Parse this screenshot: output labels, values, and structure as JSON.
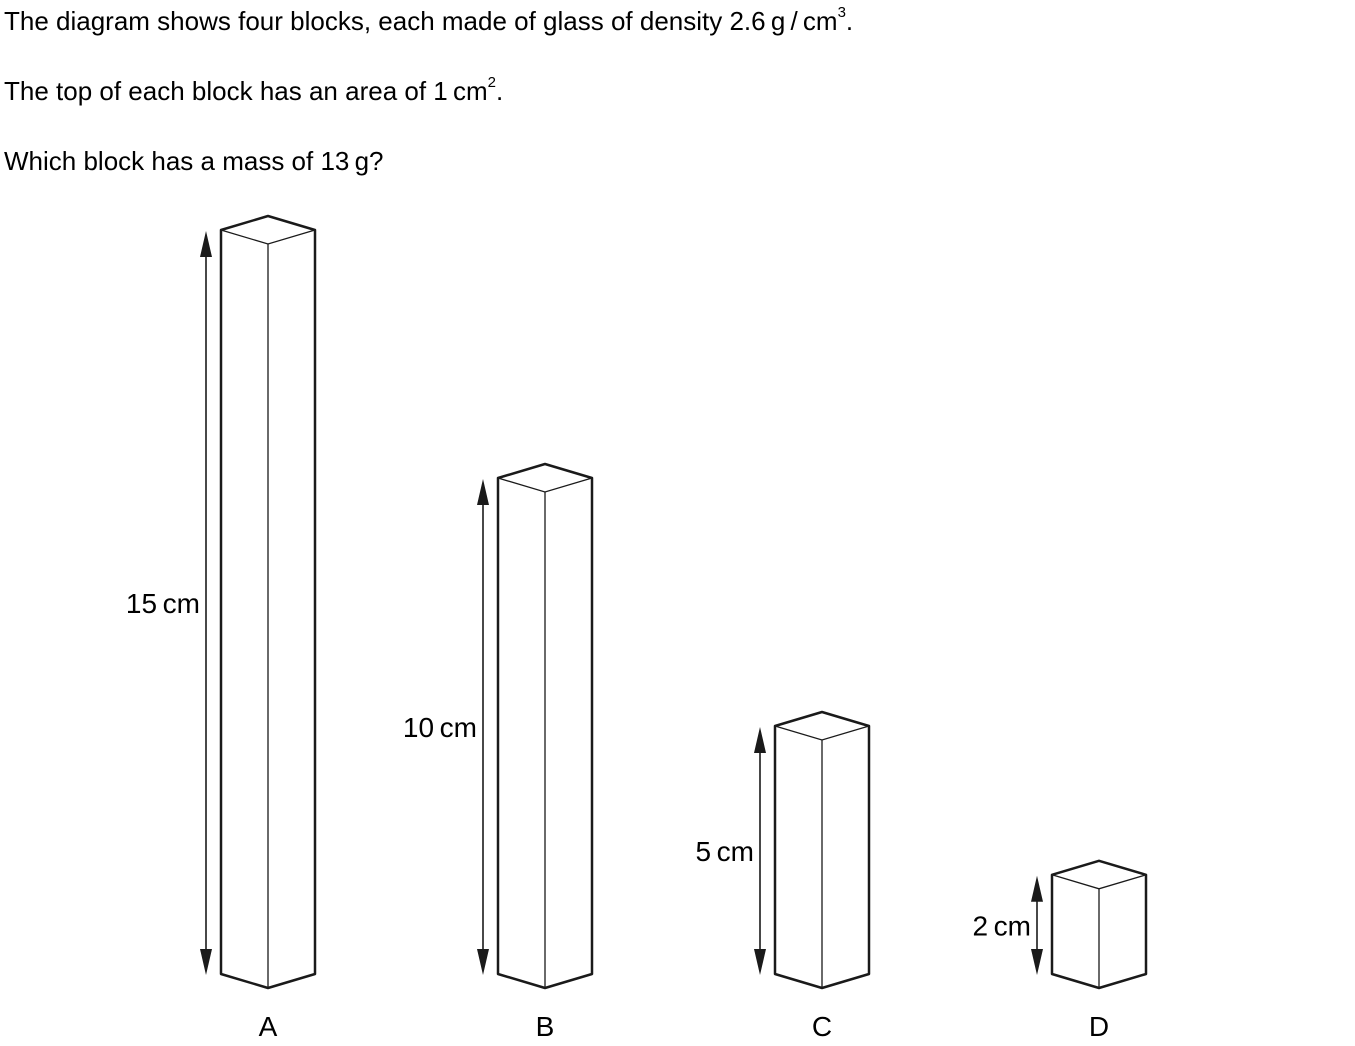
{
  "question": {
    "line1_prefix": "The diagram shows four blocks, each made of glass of density 2.6 g / cm",
    "line1_sup": "3",
    "line1_suffix": ".",
    "line2_prefix": "The top of each block has an area of 1 cm",
    "line2_sup": "2",
    "line2_suffix": ".",
    "line3": "Which block has a mass of 13 g?"
  },
  "blocks": [
    {
      "letter": "A",
      "height_label": "15 cm",
      "height_cm": 15
    },
    {
      "letter": "B",
      "height_label": "10 cm",
      "height_cm": 10
    },
    {
      "letter": "C",
      "height_label": "5 cm",
      "height_cm": 5
    },
    {
      "letter": "D",
      "height_label": "2 cm",
      "height_cm": 2
    }
  ]
}
